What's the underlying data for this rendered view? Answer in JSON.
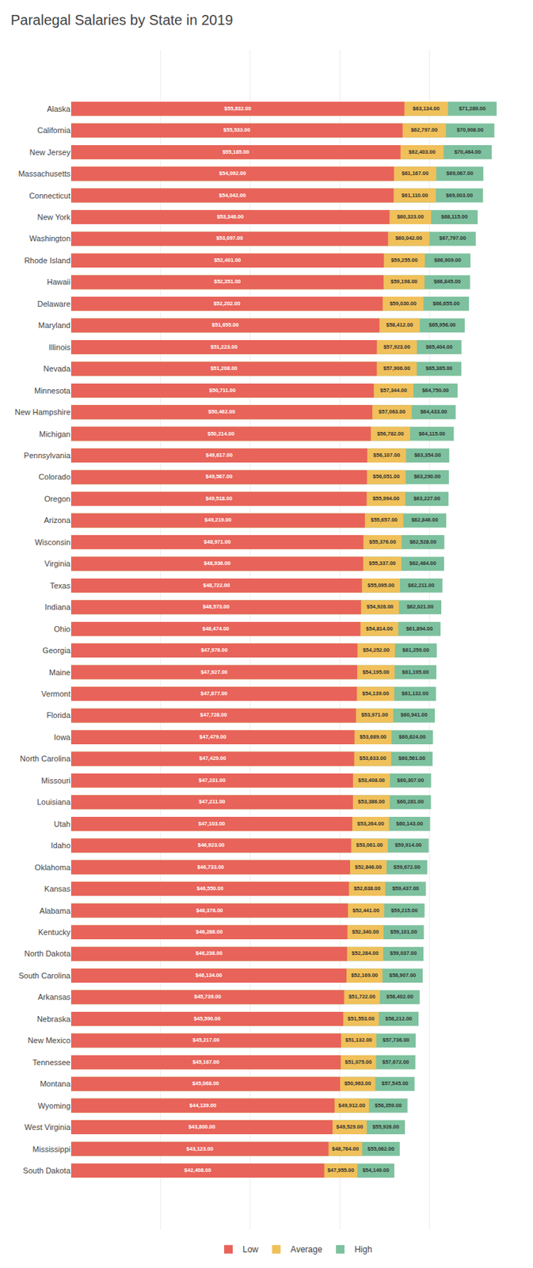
{
  "chart_data": {
    "type": "bar",
    "title": "Paralegal Salaries by State in 2019",
    "orientation": "horizontal",
    "categories": [
      "Alaska",
      "California",
      "New Jersey",
      "Massachusetts",
      "Connecticut",
      "New York",
      "Washington",
      "Rhode Island",
      "Hawaii",
      "Delaware",
      "Maryland",
      "Illinois",
      "Nevada",
      "Minnesota",
      "New Hampshire",
      "Michigan",
      "Pennsylvania",
      "Colorado",
      "Oregon",
      "Arizona",
      "Wisconsin",
      "Virginia",
      "Texas",
      "Indiana",
      "Ohio",
      "Georgia",
      "Maine",
      "Vermont",
      "Florida",
      "Iowa",
      "North Carolina",
      "Missouri",
      "Louisiana",
      "Utah",
      "Idaho",
      "Oklahoma",
      "Kansas",
      "Alabama",
      "Kentucky",
      "North Dakota",
      "South Carolina",
      "Arkansas",
      "Nebraska",
      "New Mexico",
      "Tennessee",
      "Montana",
      "Wyoming",
      "West Virginia",
      "Mississippi",
      "South Dakota"
    ],
    "series": [
      {
        "name": "Low",
        "color": "#E8635A",
        "values": [
          55832,
          55533,
          55185,
          54092,
          54042,
          53346,
          53097,
          52401,
          52351,
          52202,
          51655,
          51223,
          51208,
          50711,
          50462,
          50214,
          49617,
          49567,
          49518,
          49219,
          48971,
          48936,
          48722,
          48573,
          48474,
          47976,
          47927,
          47877,
          47728,
          47479,
          47429,
          47231,
          47211,
          47103,
          46923,
          46733,
          46550,
          46376,
          46286,
          46236,
          46134,
          45739,
          45590,
          45217,
          45167,
          45068,
          44139,
          43800,
          43123,
          42408
        ],
        "value_labels": [
          "$55,832.00",
          "$55,533.00",
          "$55,185.00",
          "$54,092.00",
          "$54,042.00",
          "$53,346.00",
          "$53,097.00",
          "$52,401.00",
          "$52,351.00",
          "$52,202.00",
          "$51,655.00",
          "$51,223.00",
          "$51,208.00",
          "$50,711.00",
          "$50,462.00",
          "$50,214.00",
          "$49,617.00",
          "$49,567.00",
          "$49,518.00",
          "$49,219.00",
          "$48,971.00",
          "$48,936.00",
          "$48,722.00",
          "$48,573.00",
          "$48,474.00",
          "$47,976.00",
          "$47,927.00",
          "$47,877.00",
          "$47,728.00",
          "$47,479.00",
          "$47,429.00",
          "$47,231.00",
          "$47,211.00",
          "$47,103.00",
          "$46,923.00",
          "$46,733.00",
          "$46,550.00",
          "$46,376.00",
          "$46,286.00",
          "$46,236.00",
          "$46,134.00",
          "$45,739.00",
          "$45,590.00",
          "$45,217.00",
          "$45,167.00",
          "$45,068.00",
          "$44,139.00",
          "$43,800.00",
          "$43,123.00",
          "$42,408.00"
        ]
      },
      {
        "name": "Average",
        "color": "#F0C05A",
        "values": [
          63134,
          62797,
          62403,
          61167,
          61110,
          60323,
          60042,
          59255,
          59198,
          59030,
          58412,
          57923,
          57906,
          57344,
          57063,
          56782,
          56107,
          56051,
          55994,
          55657,
          55376,
          55337,
          55095,
          54926,
          54814,
          54252,
          54195,
          54139,
          53971,
          53689,
          53633,
          53408,
          53386,
          53264,
          53061,
          52846,
          52638,
          52441,
          52340,
          52284,
          52169,
          51722,
          51553,
          51132,
          51075,
          50963,
          49912,
          49529,
          48764,
          47955
        ],
        "value_labels": [
          "$63,134.00",
          "$62,797.00",
          "$62,403.00",
          "$61,167.00",
          "$61,110.00",
          "$60,323.00",
          "$60,042.00",
          "$59,255.00",
          "$59,198.00",
          "$59,030.00",
          "$58,412.00",
          "$57,923.00",
          "$57,906.00",
          "$57,344.00",
          "$57,063.00",
          "$56,782.00",
          "$56,107.00",
          "$56,051.00",
          "$55,994.00",
          "$55,657.00",
          "$55,376.00",
          "$55,337.00",
          "$55,095.00",
          "$54,926.00",
          "$54,814.00",
          "$54,252.00",
          "$54,195.00",
          "$54,139.00",
          "$53,971.00",
          "$53,689.00",
          "$53,633.00",
          "$53,408.00",
          "$53,386.00",
          "$53,264.00",
          "$53,061.00",
          "$52,846.00",
          "$52,638.00",
          "$52,441.00",
          "$52,340.00",
          "$52,284.00",
          "$52,169.00",
          "$51,722.00",
          "$51,553.00",
          "$51,132.00",
          "$51,075.00",
          "$50,963.00",
          "$49,912.00",
          "$49,529.00",
          "$48,764.00",
          "$47,955.00"
        ]
      },
      {
        "name": "High",
        "color": "#7DC19E",
        "values": [
          71289,
          70908,
          70464,
          69067,
          69003,
          68115,
          67797,
          66909,
          66845,
          66655,
          65956,
          65404,
          65385,
          64750,
          64433,
          64115,
          63354,
          63290,
          63227,
          62846,
          62528,
          62484,
          62211,
          62021,
          61894,
          61259,
          61195,
          61132,
          60941,
          60624,
          60561,
          60307,
          60281,
          60143,
          59914,
          59672,
          59437,
          59215,
          59101,
          59037,
          58907,
          58402,
          58212,
          57736,
          57672,
          57545,
          56359,
          55926,
          55062,
          54149
        ],
        "value_labels": [
          "$71,289.00",
          "$70,908.00",
          "$70,464.00",
          "$69,067.00",
          "$69,003.00",
          "$68,115.00",
          "$67,797.00",
          "$66,909.00",
          "$66,845.00",
          "$66,655.00",
          "$65,956.00",
          "$65,404.00",
          "$65,385.00",
          "$64,750.00",
          "$64,433.00",
          "$64,115.00",
          "$63,354.00",
          "$63,290.00",
          "$63,227.00",
          "$62,846.00",
          "$62,528.00",
          "$62,484.00",
          "$62,211.00",
          "$62,021.00",
          "$61,894.00",
          "$61,259.00",
          "$61,195.00",
          "$61,132.00",
          "$60,941.00",
          "$60,624.00",
          "$60,561.00",
          "$60,307.00",
          "$60,281.00",
          "$60,143.00",
          "$59,914.00",
          "$59,672.00",
          "$59,437.00",
          "$59,215.00",
          "$59,101.00",
          "$59,037.00",
          "$58,907.00",
          "$58,402.00",
          "$58,212.00",
          "$57,736.00",
          "$57,672.00",
          "$57,545.00",
          "$56,359.00",
          "$55,926.00",
          "$55,062.00",
          "$54,149.00"
        ]
      }
    ],
    "xlim": [
      0,
      75000
    ],
    "xticks": [
      0,
      15000,
      30000,
      45000,
      60000,
      75000
    ],
    "grid": true,
    "legend": "bottom",
    "tick_labels": "y",
    "data_labels": true
  }
}
